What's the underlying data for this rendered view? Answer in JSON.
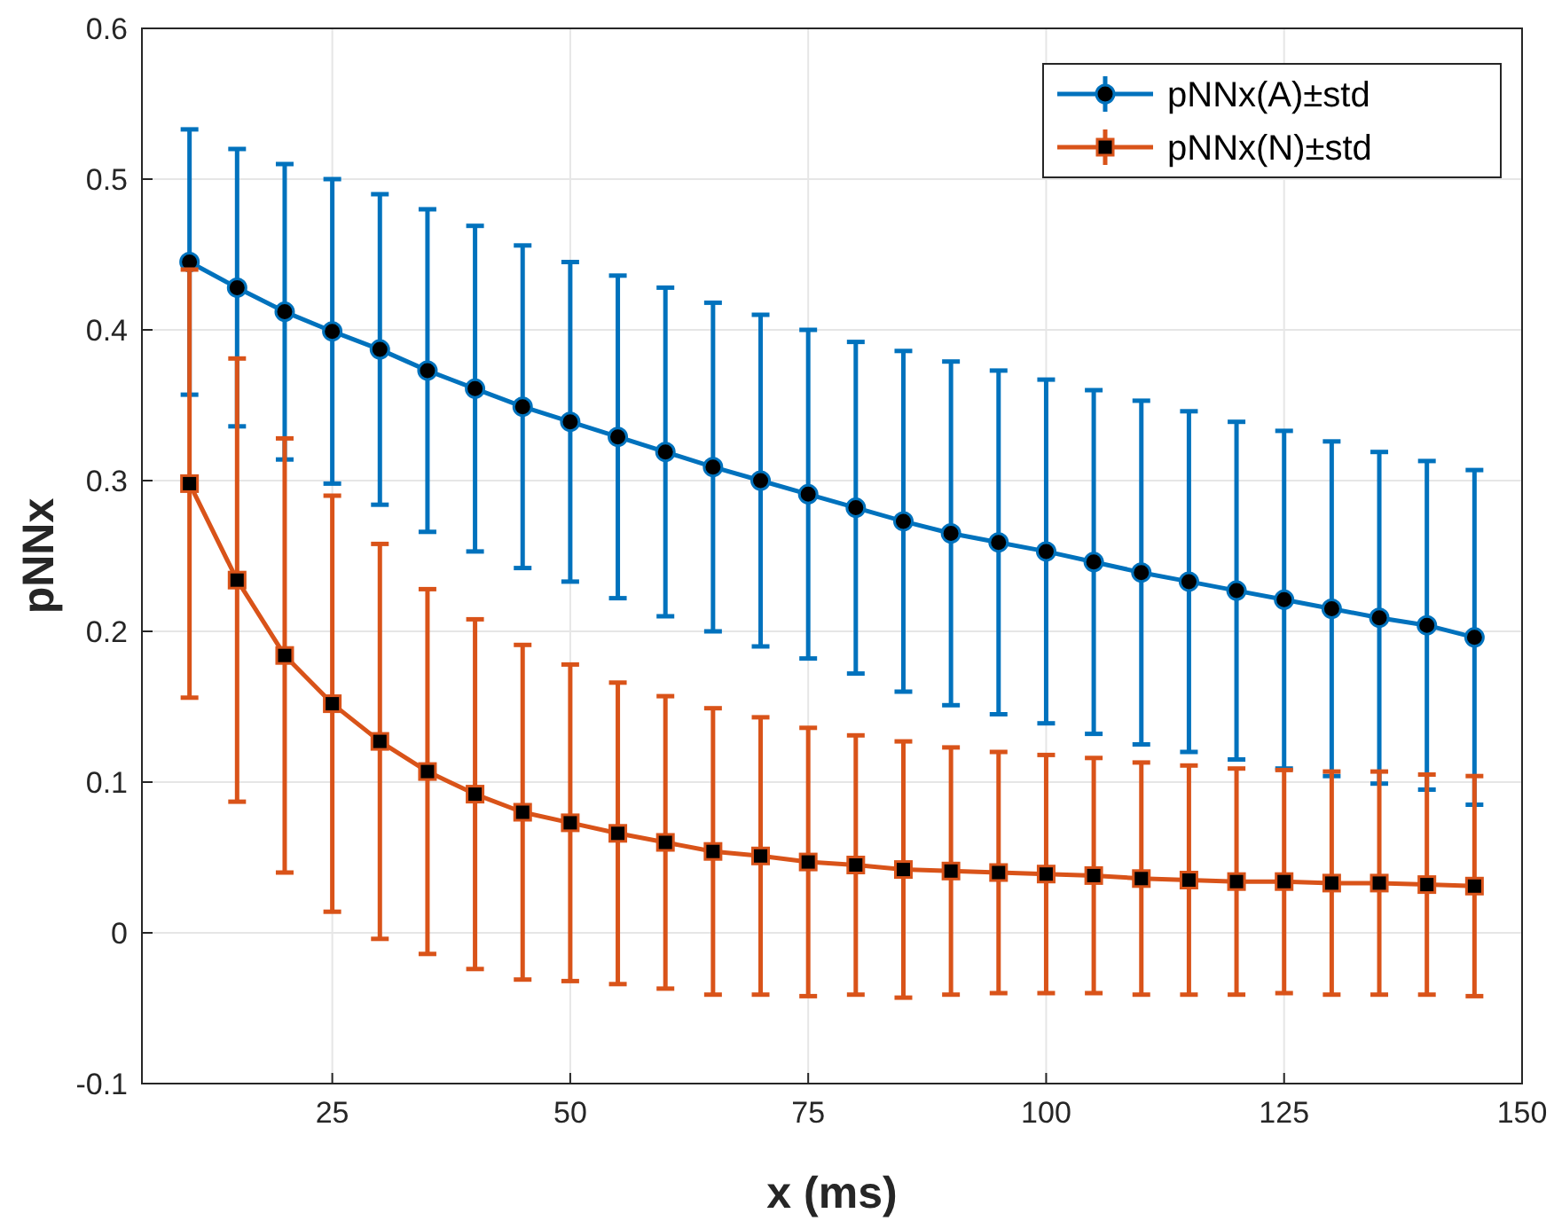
{
  "chart_data": {
    "type": "line",
    "xlabel": "x (ms)",
    "ylabel": "pNNx",
    "x": [
      10,
      15,
      20,
      25,
      30,
      35,
      40,
      45,
      50,
      55,
      60,
      65,
      70,
      75,
      80,
      85,
      90,
      95,
      100,
      105,
      110,
      115,
      120,
      125,
      130,
      135,
      140,
      145
    ],
    "xlim": [
      5,
      150
    ],
    "xticks": [
      25,
      50,
      75,
      100,
      125,
      150
    ],
    "ylim": [
      -0.1,
      0.6
    ],
    "yticks": [
      -0.1,
      0,
      0.1,
      0.2,
      0.3,
      0.4,
      0.5,
      0.6
    ],
    "grid": true,
    "legend": "top right",
    "line_style": "solid",
    "series": [
      {
        "name": "pNNx(A)±std",
        "color": "#0072bd",
        "marker": "circle",
        "values": [
          0.445,
          0.428,
          0.412,
          0.399,
          0.387,
          0.373,
          0.361,
          0.349,
          0.339,
          0.329,
          0.319,
          0.309,
          0.3,
          0.291,
          0.282,
          0.273,
          0.265,
          0.259,
          0.253,
          0.246,
          0.239,
          0.233,
          0.227,
          0.221,
          0.215,
          0.209,
          0.204,
          0.196
        ],
        "errors": [
          0.088,
          0.092,
          0.098,
          0.101,
          0.103,
          0.107,
          0.108,
          0.107,
          0.106,
          0.107,
          0.109,
          0.109,
          0.11,
          0.109,
          0.11,
          0.113,
          0.114,
          0.114,
          0.114,
          0.114,
          0.114,
          0.113,
          0.112,
          0.112,
          0.111,
          0.11,
          0.109,
          0.111
        ]
      },
      {
        "name": "pNNx(N)±std",
        "color": "#d95319",
        "marker": "square",
        "values": [
          0.298,
          0.234,
          0.184,
          0.152,
          0.127,
          0.107,
          0.092,
          0.08,
          0.073,
          0.066,
          0.06,
          0.054,
          0.051,
          0.047,
          0.045,
          0.042,
          0.041,
          0.04,
          0.039,
          0.038,
          0.036,
          0.035,
          0.034,
          0.034,
          0.033,
          0.033,
          0.032,
          0.031
        ],
        "errors": [
          0.142,
          0.147,
          0.144,
          0.138,
          0.131,
          0.121,
          0.116,
          0.111,
          0.105,
          0.1,
          0.097,
          0.095,
          0.092,
          0.089,
          0.086,
          0.085,
          0.082,
          0.08,
          0.079,
          0.078,
          0.077,
          0.076,
          0.075,
          0.074,
          0.074,
          0.074,
          0.073,
          0.073
        ]
      }
    ]
  }
}
